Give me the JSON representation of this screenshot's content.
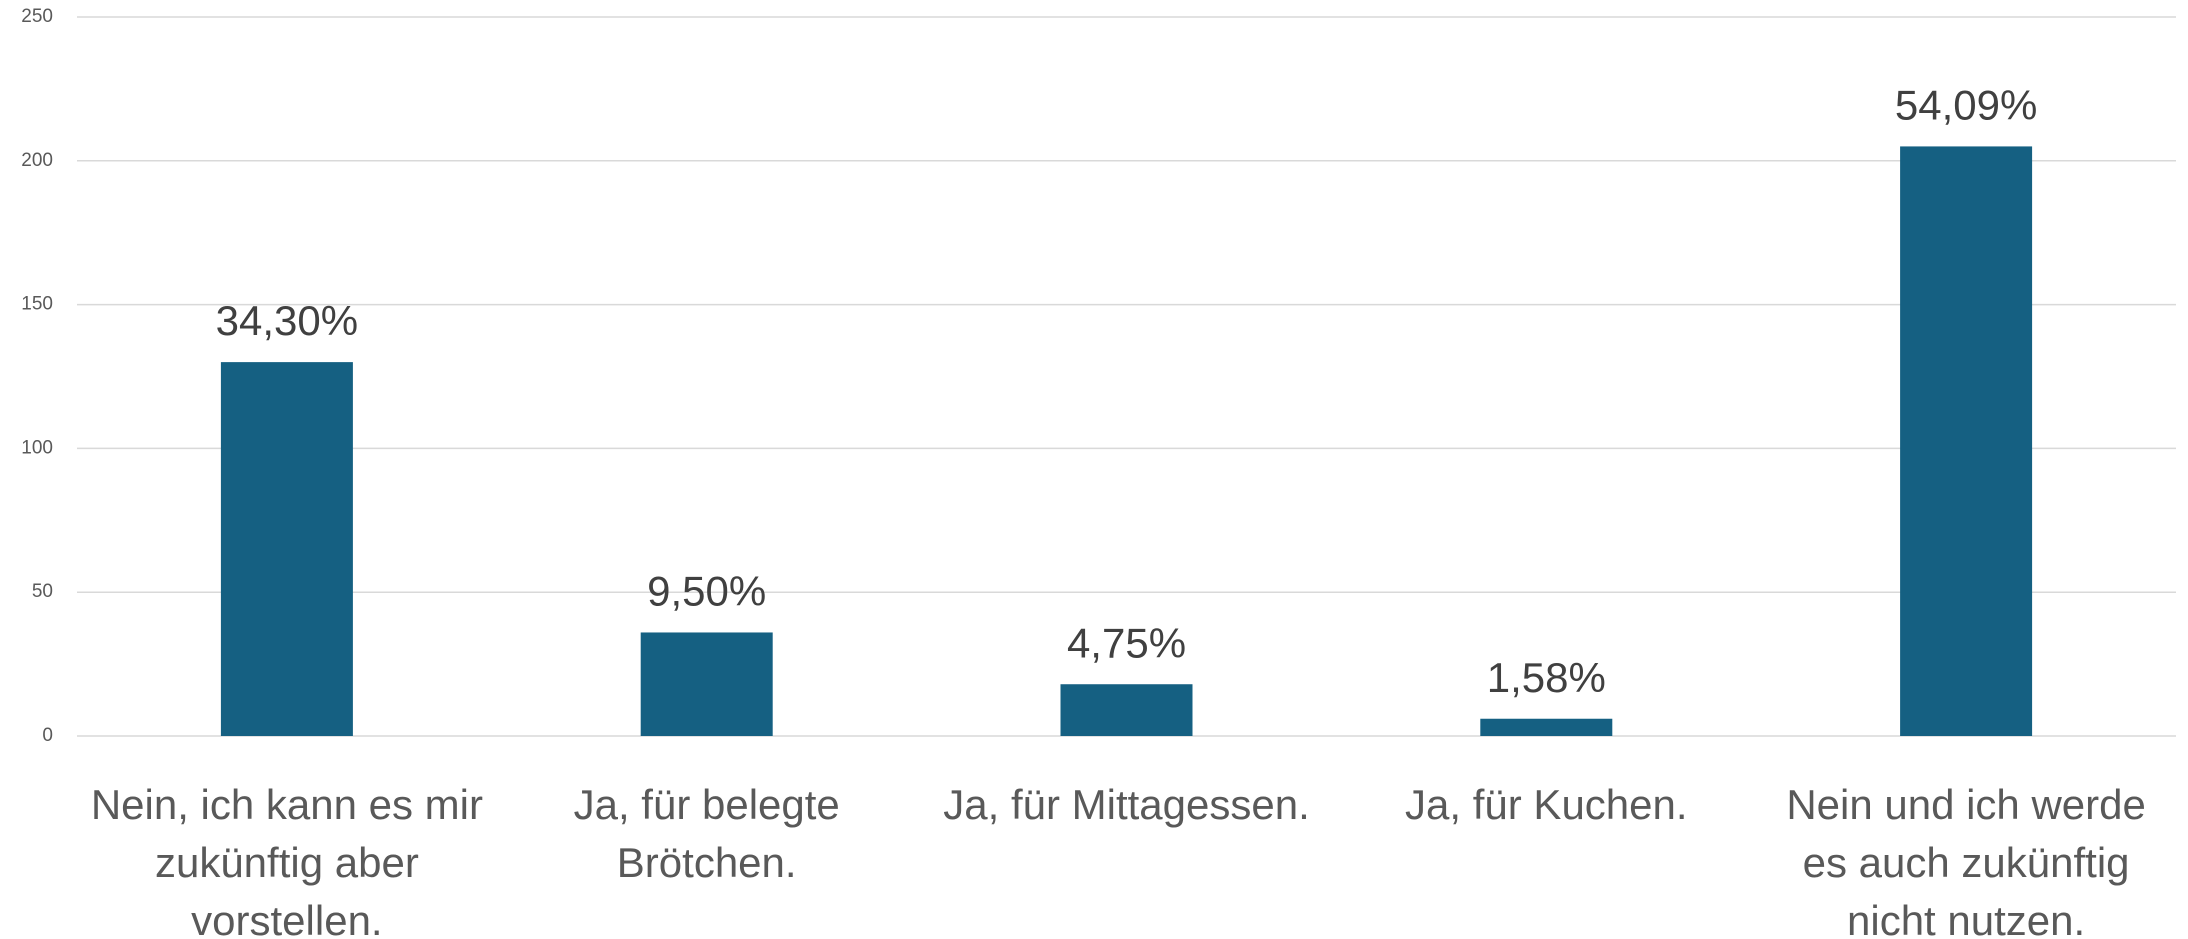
{
  "chart_data": {
    "type": "bar",
    "categories": [
      "Nein, ich kann es mir zukünftig aber vorstellen.",
      "Ja, für belegte Brötchen.",
      "Ja, für Mittagessen.",
      "Ja, für Kuchen.",
      "Nein und ich werde es auch zukünftig nicht nutzen."
    ],
    "values": [
      130,
      36,
      18,
      6,
      205
    ],
    "annotations": [
      "34,30%",
      "9,50%",
      "4,75%",
      "1,58%",
      "54,09%"
    ],
    "color": "#156082",
    "ylim": [
      0,
      250
    ],
    "yticks": [
      0,
      50,
      100,
      150,
      200,
      250
    ],
    "grid": true
  }
}
